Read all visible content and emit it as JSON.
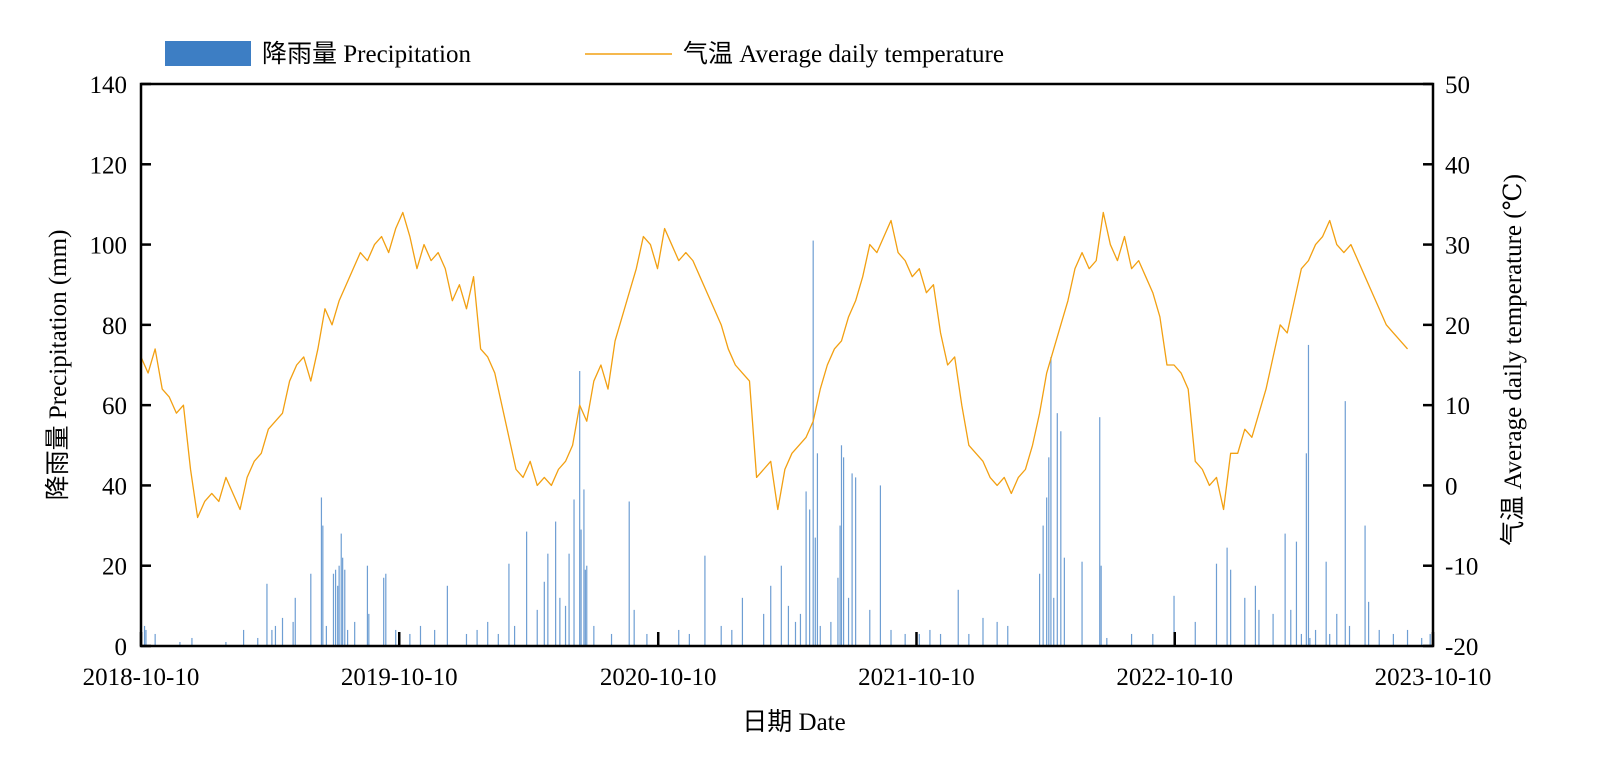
{
  "chart_data": {
    "type": "bar+line",
    "title": "",
    "legend": {
      "placement": "top",
      "entries": [
        {
          "name": "降雨量 Precipitation",
          "type": "bar",
          "color": "#3d7ec4"
        },
        {
          "name": "气温 Average daily temperature",
          "type": "line",
          "color": "#f2a012"
        }
      ]
    },
    "xlabel": "日期 Date",
    "ylabel_left": "降雨量 Precipitation (mm)",
    "ylabel_right": "气温 Average daily temperature (℃)",
    "x_range": [
      "2018-10-10",
      "2023-10-10"
    ],
    "x_ticks": [
      "2018-10-10",
      "2019-10-10",
      "2020-10-10",
      "2021-10-10",
      "2022-10-10",
      "2023-10-10"
    ],
    "ylim_left": [
      0,
      140
    ],
    "yticks_left": [
      "0",
      "20",
      "40",
      "60",
      "80",
      "100",
      "120",
      "140"
    ],
    "ylim_right": [
      -20,
      50
    ],
    "yticks_right": [
      "-20",
      "-10",
      "0",
      "10",
      "20",
      "30",
      "40",
      "50"
    ],
    "grid": false,
    "series": [
      {
        "name": "降雨量 Precipitation",
        "axis": "left",
        "type": "bar",
        "color": "#3d7ec4",
        "unit": "mm",
        "note": "daily precipitation; major events sampled by day offset from 2018-10-10",
        "points": [
          {
            "day": 5,
            "value": 5
          },
          {
            "day": 7,
            "value": 4
          },
          {
            "day": 20,
            "value": 3
          },
          {
            "day": 55,
            "value": 1
          },
          {
            "day": 72,
            "value": 2
          },
          {
            "day": 120,
            "value": 1
          },
          {
            "day": 145,
            "value": 4
          },
          {
            "day": 165,
            "value": 2
          },
          {
            "day": 178,
            "value": 15.5
          },
          {
            "day": 185,
            "value": 4
          },
          {
            "day": 190,
            "value": 5
          },
          {
            "day": 200,
            "value": 7
          },
          {
            "day": 215,
            "value": 6
          },
          {
            "day": 218,
            "value": 12
          },
          {
            "day": 240,
            "value": 18
          },
          {
            "day": 255,
            "value": 37
          },
          {
            "day": 257,
            "value": 30
          },
          {
            "day": 262,
            "value": 5
          },
          {
            "day": 272,
            "value": 18
          },
          {
            "day": 275,
            "value": 19
          },
          {
            "day": 278,
            "value": 15
          },
          {
            "day": 280,
            "value": 20
          },
          {
            "day": 283,
            "value": 28
          },
          {
            "day": 285,
            "value": 22
          },
          {
            "day": 288,
            "value": 19
          },
          {
            "day": 292,
            "value": 4
          },
          {
            "day": 302,
            "value": 6
          },
          {
            "day": 320,
            "value": 20
          },
          {
            "day": 322,
            "value": 8
          },
          {
            "day": 343,
            "value": 17
          },
          {
            "day": 346,
            "value": 18
          },
          {
            "day": 360,
            "value": 4
          },
          {
            "day": 380,
            "value": 3
          },
          {
            "day": 395,
            "value": 5
          },
          {
            "day": 415,
            "value": 4
          },
          {
            "day": 433,
            "value": 15
          },
          {
            "day": 460,
            "value": 3
          },
          {
            "day": 475,
            "value": 4
          },
          {
            "day": 490,
            "value": 6
          },
          {
            "day": 505,
            "value": 3
          },
          {
            "day": 520,
            "value": 20.5
          },
          {
            "day": 528,
            "value": 5
          },
          {
            "day": 545,
            "value": 28.5
          },
          {
            "day": 560,
            "value": 9
          },
          {
            "day": 570,
            "value": 16
          },
          {
            "day": 575,
            "value": 23
          },
          {
            "day": 586,
            "value": 31
          },
          {
            "day": 592,
            "value": 12
          },
          {
            "day": 600,
            "value": 10
          },
          {
            "day": 605,
            "value": 23
          },
          {
            "day": 612,
            "value": 36.5
          },
          {
            "day": 620,
            "value": 68.5
          },
          {
            "day": 622,
            "value": 29
          },
          {
            "day": 626,
            "value": 39
          },
          {
            "day": 628,
            "value": 19
          },
          {
            "day": 630,
            "value": 20
          },
          {
            "day": 640,
            "value": 5
          },
          {
            "day": 665,
            "value": 3
          },
          {
            "day": 690,
            "value": 36
          },
          {
            "day": 697,
            "value": 9
          },
          {
            "day": 715,
            "value": 3
          },
          {
            "day": 760,
            "value": 4
          },
          {
            "day": 775,
            "value": 3
          },
          {
            "day": 797,
            "value": 22.5
          },
          {
            "day": 820,
            "value": 5
          },
          {
            "day": 835,
            "value": 4
          },
          {
            "day": 850,
            "value": 12
          },
          {
            "day": 880,
            "value": 8
          },
          {
            "day": 890,
            "value": 15
          },
          {
            "day": 905,
            "value": 20
          },
          {
            "day": 915,
            "value": 10
          },
          {
            "day": 925,
            "value": 6
          },
          {
            "day": 932,
            "value": 8
          },
          {
            "day": 940,
            "value": 38.5
          },
          {
            "day": 945,
            "value": 34
          },
          {
            "day": 950,
            "value": 101
          },
          {
            "day": 953,
            "value": 27
          },
          {
            "day": 956,
            "value": 48
          },
          {
            "day": 960,
            "value": 5
          },
          {
            "day": 975,
            "value": 6
          },
          {
            "day": 985,
            "value": 17
          },
          {
            "day": 988,
            "value": 30
          },
          {
            "day": 990,
            "value": 50
          },
          {
            "day": 993,
            "value": 47
          },
          {
            "day": 1000,
            "value": 12
          },
          {
            "day": 1005,
            "value": 43
          },
          {
            "day": 1010,
            "value": 42
          },
          {
            "day": 1030,
            "value": 9
          },
          {
            "day": 1045,
            "value": 40
          },
          {
            "day": 1060,
            "value": 4
          },
          {
            "day": 1080,
            "value": 3
          },
          {
            "day": 1100,
            "value": 3
          },
          {
            "day": 1115,
            "value": 4
          },
          {
            "day": 1130,
            "value": 3
          },
          {
            "day": 1155,
            "value": 14
          },
          {
            "day": 1170,
            "value": 3
          },
          {
            "day": 1190,
            "value": 7
          },
          {
            "day": 1210,
            "value": 6
          },
          {
            "day": 1225,
            "value": 5
          },
          {
            "day": 1270,
            "value": 18
          },
          {
            "day": 1275,
            "value": 30
          },
          {
            "day": 1280,
            "value": 37
          },
          {
            "day": 1283,
            "value": 47
          },
          {
            "day": 1286,
            "value": 72
          },
          {
            "day": 1290,
            "value": 12
          },
          {
            "day": 1295,
            "value": 58
          },
          {
            "day": 1300,
            "value": 53.5
          },
          {
            "day": 1305,
            "value": 22
          },
          {
            "day": 1330,
            "value": 21
          },
          {
            "day": 1355,
            "value": 57
          },
          {
            "day": 1357,
            "value": 20
          },
          {
            "day": 1365,
            "value": 2
          },
          {
            "day": 1400,
            "value": 3
          },
          {
            "day": 1430,
            "value": 3
          },
          {
            "day": 1460,
            "value": 12.5
          },
          {
            "day": 1490,
            "value": 6
          },
          {
            "day": 1520,
            "value": 20.5
          },
          {
            "day": 1535,
            "value": 24.5
          },
          {
            "day": 1540,
            "value": 19
          },
          {
            "day": 1560,
            "value": 12
          },
          {
            "day": 1575,
            "value": 15
          },
          {
            "day": 1580,
            "value": 9
          },
          {
            "day": 1600,
            "value": 8
          },
          {
            "day": 1617,
            "value": 28
          },
          {
            "day": 1625,
            "value": 9
          },
          {
            "day": 1633,
            "value": 26
          },
          {
            "day": 1640,
            "value": 3
          },
          {
            "day": 1647,
            "value": 48
          },
          {
            "day": 1650,
            "value": 75
          },
          {
            "day": 1652,
            "value": 2
          },
          {
            "day": 1660,
            "value": 4
          },
          {
            "day": 1675,
            "value": 21
          },
          {
            "day": 1680,
            "value": 3
          },
          {
            "day": 1690,
            "value": 8
          },
          {
            "day": 1702,
            "value": 61
          },
          {
            "day": 1708,
            "value": 5
          },
          {
            "day": 1730,
            "value": 30
          },
          {
            "day": 1735,
            "value": 11
          },
          {
            "day": 1750,
            "value": 4
          },
          {
            "day": 1770,
            "value": 3
          },
          {
            "day": 1790,
            "value": 4
          },
          {
            "day": 1810,
            "value": 2
          },
          {
            "day": 1822,
            "value": 3
          }
        ]
      },
      {
        "name": "气温 Average daily temperature",
        "axis": "right",
        "type": "line",
        "color": "#f2a012",
        "unit": "℃",
        "note": "sampled every 10 days from 2018-10-10",
        "step_days": 10,
        "values": [
          16,
          14,
          17,
          12,
          11,
          9,
          10,
          2,
          -4,
          -2,
          -1,
          -2,
          1,
          -1,
          -3,
          1,
          3,
          4,
          7,
          8,
          9,
          13,
          15,
          16,
          13,
          17,
          22,
          20,
          23,
          25,
          27,
          29,
          28,
          30,
          31,
          29,
          32,
          34,
          31,
          27,
          30,
          28,
          29,
          27,
          23,
          25,
          22,
          26,
          17,
          16,
          14,
          10,
          6,
          2,
          1,
          3,
          0,
          1,
          0,
          2,
          3,
          5,
          10,
          8,
          13,
          15,
          12,
          18,
          21,
          24,
          27,
          31,
          30,
          27,
          32,
          30,
          28,
          29,
          28,
          26,
          24,
          22,
          20,
          17,
          15,
          14,
          13,
          1,
          2,
          3,
          -3,
          2,
          4,
          5,
          6,
          8,
          12,
          15,
          17,
          18,
          21,
          23,
          26,
          30,
          29,
          31,
          33,
          29,
          28,
          26,
          27,
          24,
          25,
          19,
          15,
          16,
          10,
          5,
          4,
          3,
          1,
          0,
          1,
          -1,
          1,
          2,
          5,
          9,
          14,
          17,
          20,
          23,
          27,
          29,
          27,
          28,
          34,
          30,
          28,
          31,
          27,
          28,
          26,
          24,
          21,
          15,
          15,
          14,
          12,
          3,
          2,
          0,
          1,
          -3,
          4,
          4,
          7,
          6,
          9,
          12,
          16,
          20,
          19,
          23,
          27,
          28,
          30,
          31,
          33,
          30,
          29,
          30,
          28,
          26,
          24,
          22,
          20,
          19,
          18,
          17
        ]
      }
    ]
  }
}
